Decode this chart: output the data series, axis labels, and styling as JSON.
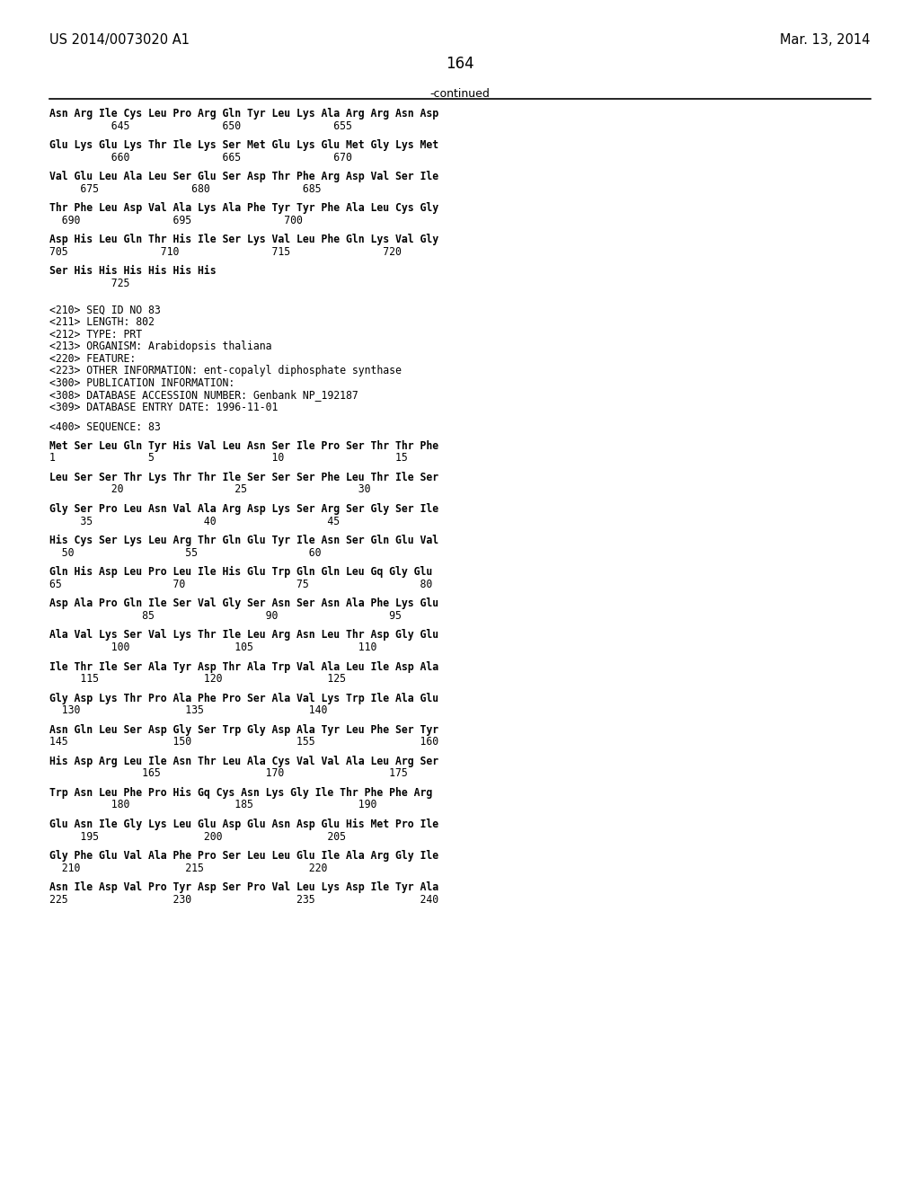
{
  "header_left": "US 2014/0073020 A1",
  "header_right": "Mar. 13, 2014",
  "page_number": "164",
  "continued_label": "-continued",
  "background_color": "#ffffff",
  "text_color": "#000000",
  "font_size": 8.5,
  "mono_font": "DejaVu Sans Mono",
  "lines": [
    "Asn Arg Ile Cys Leu Pro Arg Gln Tyr Leu Lys Ala Arg Arg Asn Asp",
    "          645               650               655",
    "",
    "Glu Lys Glu Lys Thr Ile Lys Ser Met Glu Lys Glu Met Gly Lys Met",
    "          660               665               670",
    "",
    "Val Glu Leu Ala Leu Ser Glu Ser Asp Thr Phe Arg Asp Val Ser Ile",
    "     675               680               685",
    "",
    "Thr Phe Leu Asp Val Ala Lys Ala Phe Tyr Tyr Phe Ala Leu Cys Gly",
    "  690               695               700",
    "",
    "Asp His Leu Gln Thr His Ile Ser Lys Val Leu Phe Gln Lys Val Gly",
    "705               710               715               720",
    "",
    "Ser His His His His His His",
    "          725",
    "",
    "",
    "<210> SEQ ID NO 83",
    "<211> LENGTH: 802",
    "<212> TYPE: PRT",
    "<213> ORGANISM: Arabidopsis thaliana",
    "<220> FEATURE:",
    "<223> OTHER INFORMATION: ent-copalyl diphosphate synthase",
    "<300> PUBLICATION INFORMATION:",
    "<308> DATABASE ACCESSION NUMBER: Genbank NP_192187",
    "<309> DATABASE ENTRY DATE: 1996-11-01",
    "",
    "<400> SEQUENCE: 83",
    "",
    "Met Ser Leu Gln Tyr His Val Leu Asn Ser Ile Pro Ser Thr Thr Phe",
    "1               5                   10                  15",
    "",
    "Leu Ser Ser Thr Lys Thr Thr Ile Ser Ser Ser Phe Leu Thr Ile Ser",
    "          20                  25                  30",
    "",
    "Gly Ser Pro Leu Asn Val Ala Arg Asp Lys Ser Arg Ser Gly Ser Ile",
    "     35                  40                  45",
    "",
    "His Cys Ser Lys Leu Arg Thr Gln Glu Tyr Ile Asn Ser Gln Glu Val",
    "  50                  55                  60",
    "",
    "Gln His Asp Leu Pro Leu Ile His Glu Trp Gln Gln Leu Gq Gly Glu",
    "65                  70                  75                  80",
    "",
    "Asp Ala Pro Gln Ile Ser Val Gly Ser Asn Ser Asn Ala Phe Lys Glu",
    "               85                  90                  95",
    "",
    "Ala Val Lys Ser Val Lys Thr Ile Leu Arg Asn Leu Thr Asp Gly Glu",
    "          100                 105                 110",
    "",
    "Ile Thr Ile Ser Ala Tyr Asp Thr Ala Trp Val Ala Leu Ile Asp Ala",
    "     115                 120                 125",
    "",
    "Gly Asp Lys Thr Pro Ala Phe Pro Ser Ala Val Lys Trp Ile Ala Glu",
    "  130                 135                 140",
    "",
    "Asn Gln Leu Ser Asp Gly Ser Trp Gly Asp Ala Tyr Leu Phe Ser Tyr",
    "145                 150                 155                 160",
    "",
    "His Asp Arg Leu Ile Asn Thr Leu Ala Cys Val Val Ala Leu Arg Ser",
    "               165                 170                 175",
    "",
    "Trp Asn Leu Phe Pro His Gq Cys Asn Lys Gly Ile Thr Phe Phe Arg",
    "          180                 185                 190",
    "",
    "Glu Asn Ile Gly Lys Leu Glu Asp Glu Asn Asp Glu His Met Pro Ile",
    "     195                 200                 205",
    "",
    "Gly Phe Glu Val Ala Phe Pro Ser Leu Leu Glu Ile Ala Arg Gly Ile",
    "  210                 215                 220",
    "",
    "Asn Ile Asp Val Pro Tyr Asp Ser Pro Val Leu Lys Asp Ile Tyr Ala",
    "225                 230                 235                 240"
  ]
}
